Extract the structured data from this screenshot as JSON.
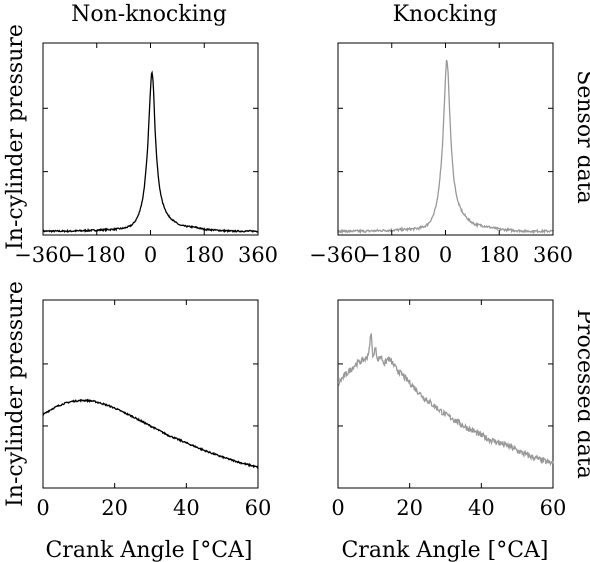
{
  "chart_data": [
    {
      "type": "line",
      "title": "Non-knocking",
      "ylabel": "In-cylinder pressure",
      "xlabel": "",
      "side_label": "",
      "xlim": [
        -360,
        360
      ],
      "xticks": [
        -360,
        -180,
        0,
        180,
        360
      ],
      "xtick_labels": [
        "−360",
        "−180",
        "0",
        "180",
        "360"
      ],
      "yticks": [
        0.0,
        0.33,
        0.66,
        1.0
      ],
      "color": "#000000",
      "noise": 0.004,
      "x": [
        -360,
        -270,
        -180,
        -120,
        -90,
        -80,
        -70,
        -60,
        -50,
        -40,
        -30,
        -25,
        -20,
        -15,
        -10,
        -5,
        0,
        3,
        5,
        8,
        10,
        12,
        15,
        20,
        25,
        30,
        40,
        50,
        60,
        80,
        100,
        120,
        150,
        180,
        220,
        270,
        320,
        360
      ],
      "y": [
        0.02,
        0.02,
        0.025,
        0.03,
        0.035,
        0.04,
        0.045,
        0.055,
        0.075,
        0.105,
        0.16,
        0.2,
        0.26,
        0.34,
        0.44,
        0.6,
        0.76,
        0.84,
        0.85,
        0.82,
        0.76,
        0.68,
        0.56,
        0.42,
        0.32,
        0.25,
        0.17,
        0.13,
        0.1,
        0.07,
        0.05,
        0.045,
        0.04,
        0.03,
        0.025,
        0.02,
        0.02,
        0.02
      ]
    },
    {
      "type": "line",
      "title": "Knocking",
      "ylabel": "",
      "xlabel": "",
      "side_label": "Sensor data",
      "xlim": [
        -360,
        360
      ],
      "xticks": [
        -360,
        -180,
        0,
        180,
        360
      ],
      "xtick_labels": [
        "−360",
        "−180",
        "0",
        "180",
        "360"
      ],
      "yticks": [
        0.0,
        0.33,
        0.66,
        1.0
      ],
      "color": "#999999",
      "noise": 0.006,
      "x": [
        -360,
        -270,
        -180,
        -120,
        -90,
        -80,
        -70,
        -60,
        -50,
        -40,
        -30,
        -25,
        -20,
        -15,
        -10,
        -5,
        0,
        3,
        5,
        8,
        10,
        12,
        15,
        20,
        25,
        30,
        40,
        50,
        60,
        80,
        100,
        120,
        150,
        180,
        220,
        270,
        320,
        360
      ],
      "y": [
        0.02,
        0.02,
        0.025,
        0.03,
        0.035,
        0.04,
        0.045,
        0.055,
        0.075,
        0.105,
        0.16,
        0.21,
        0.28,
        0.36,
        0.47,
        0.64,
        0.82,
        0.91,
        0.9,
        0.86,
        0.8,
        0.72,
        0.6,
        0.45,
        0.34,
        0.27,
        0.18,
        0.14,
        0.11,
        0.075,
        0.055,
        0.05,
        0.04,
        0.03,
        0.025,
        0.02,
        0.02,
        0.02
      ]
    },
    {
      "type": "line",
      "title": "",
      "ylabel": "In-cylinder pressure",
      "xlabel": "Crank Angle [°CA]",
      "side_label": "",
      "xlim": [
        0,
        60
      ],
      "xticks": [
        0,
        20,
        40,
        60
      ],
      "xtick_labels": [
        "0",
        "20",
        "40",
        "60"
      ],
      "yticks": [
        0.0,
        0.33,
        0.66,
        1.0
      ],
      "color": "#000000",
      "noise": 0.004,
      "x": [
        0,
        2,
        4,
        6,
        8,
        10,
        12,
        14,
        16,
        18,
        20,
        25,
        30,
        35,
        40,
        45,
        50,
        55,
        60
      ],
      "y": [
        0.39,
        0.415,
        0.435,
        0.45,
        0.46,
        0.465,
        0.466,
        0.462,
        0.452,
        0.44,
        0.425,
        0.38,
        0.33,
        0.28,
        0.24,
        0.2,
        0.165,
        0.135,
        0.11
      ]
    },
    {
      "type": "line",
      "title": "",
      "ylabel": "",
      "xlabel": "Crank Angle [°CA]",
      "side_label": "Processed data",
      "xlim": [
        0,
        60
      ],
      "xticks": [
        0,
        20,
        40,
        60
      ],
      "xtick_labels": [
        "0",
        "20",
        "40",
        "60"
      ],
      "yticks": [
        0.0,
        0.33,
        0.66,
        1.0
      ],
      "color": "#999999",
      "noise": 0.016,
      "x": [
        0,
        1,
        2,
        3,
        4,
        5,
        6,
        7,
        8,
        8.8,
        9.2,
        9.6,
        10,
        10.5,
        11,
        12,
        13,
        14,
        15,
        16,
        18,
        20,
        22,
        24,
        26,
        28,
        30,
        32,
        35,
        38,
        40,
        42,
        45,
        48,
        50,
        52,
        55,
        58,
        60
      ],
      "y": [
        0.55,
        0.58,
        0.6,
        0.62,
        0.64,
        0.66,
        0.67,
        0.68,
        0.69,
        0.74,
        0.84,
        0.72,
        0.7,
        0.76,
        0.68,
        0.7,
        0.66,
        0.69,
        0.67,
        0.64,
        0.6,
        0.56,
        0.52,
        0.48,
        0.45,
        0.42,
        0.39,
        0.37,
        0.33,
        0.3,
        0.28,
        0.26,
        0.24,
        0.22,
        0.2,
        0.18,
        0.16,
        0.14,
        0.13
      ]
    }
  ]
}
